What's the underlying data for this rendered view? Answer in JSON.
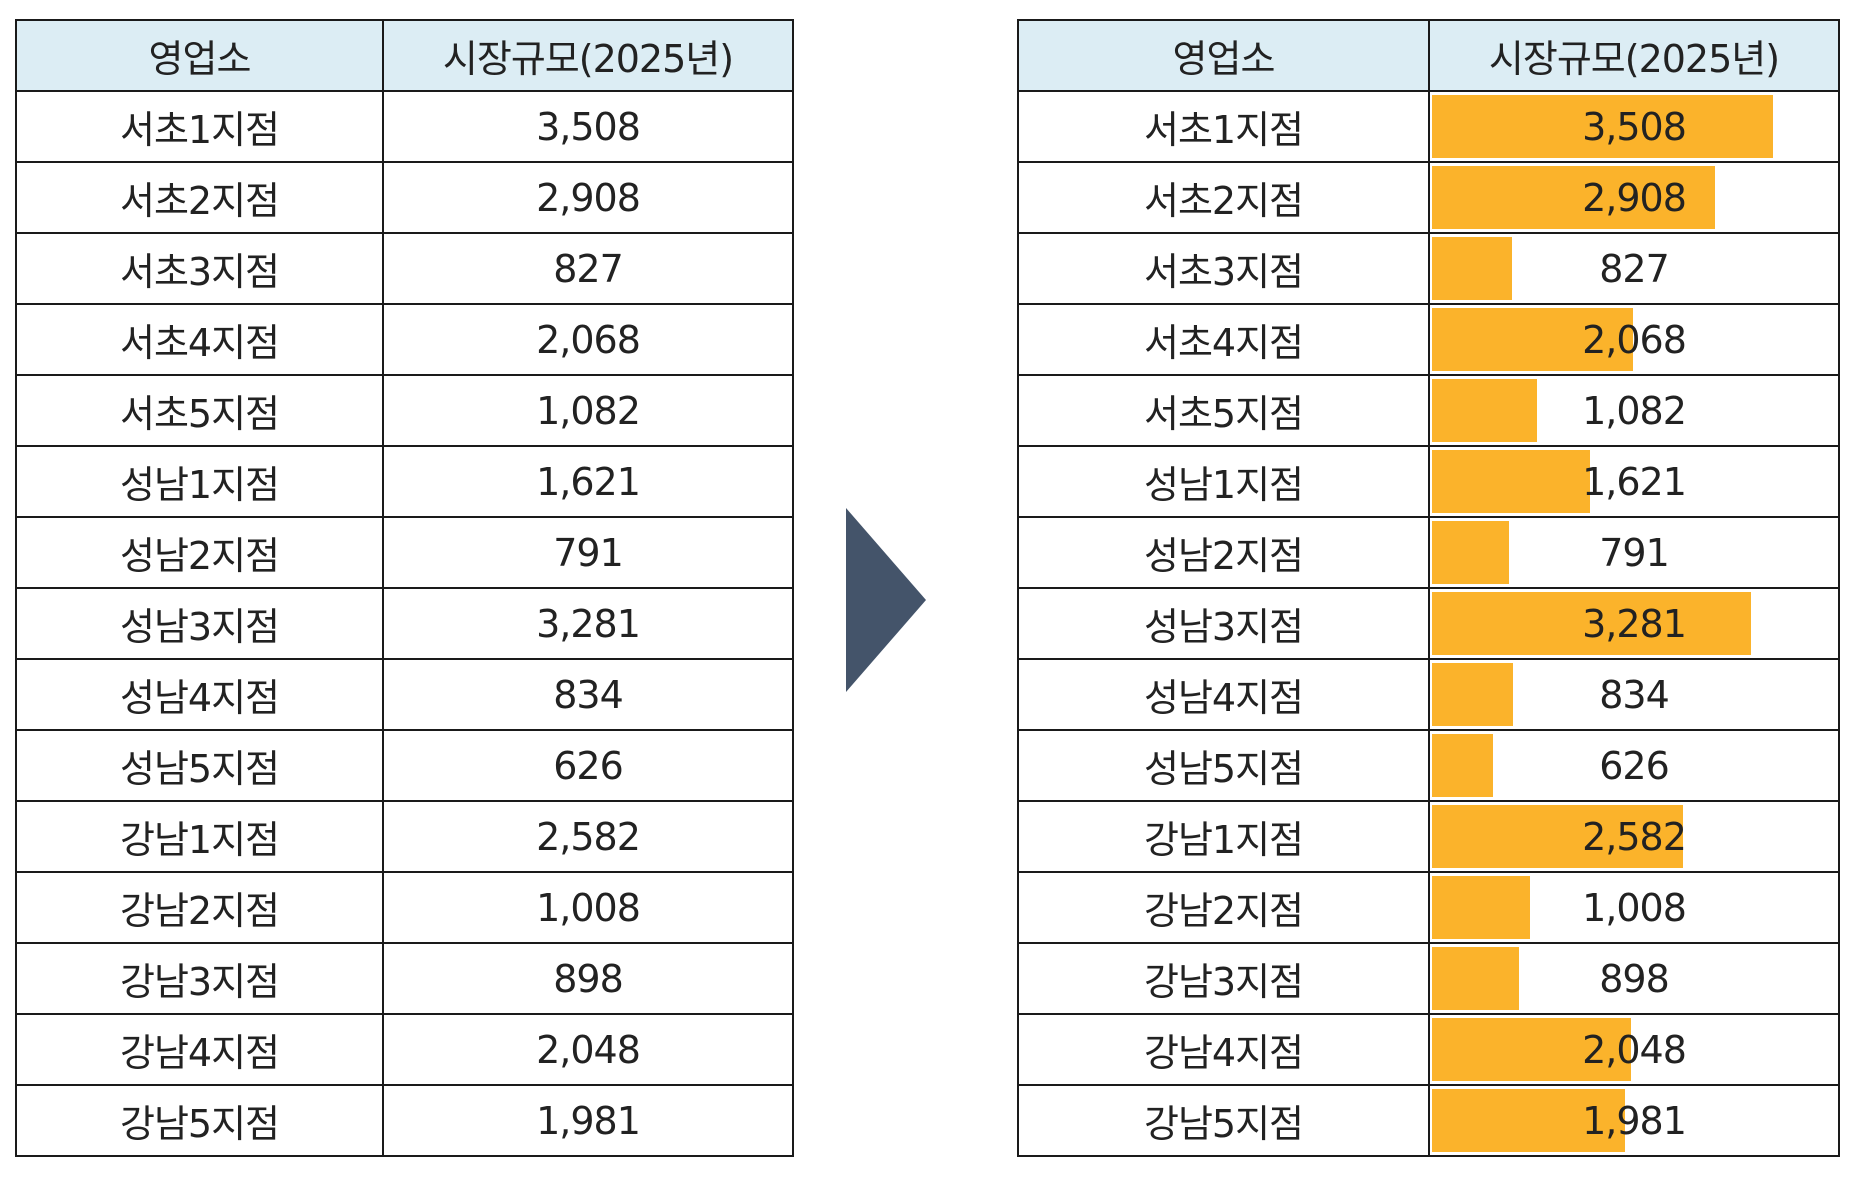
{
  "left_table": {
    "headers": [
      "영업소",
      "시장규모(2025년)"
    ],
    "rows": [
      {
        "office": "서초1지점",
        "market": "3,508"
      },
      {
        "office": "서초2지점",
        "market": "2,908"
      },
      {
        "office": "서초3지점",
        "market": "827"
      },
      {
        "office": "서초4지점",
        "market": "2,068"
      },
      {
        "office": "서초5지점",
        "market": "1,082"
      },
      {
        "office": "성남1지점",
        "market": "1,621"
      },
      {
        "office": "성남2지점",
        "market": "791"
      },
      {
        "office": "성남3지점",
        "market": "3,281"
      },
      {
        "office": "성남4지점",
        "market": "834"
      },
      {
        "office": "성남5지점",
        "market": "626"
      },
      {
        "office": "강남1지점",
        "market": "2,582"
      },
      {
        "office": "강남2지점",
        "market": "1,008"
      },
      {
        "office": "강남3지점",
        "market": "898"
      },
      {
        "office": "강남4지점",
        "market": "2,048"
      },
      {
        "office": "강남5지점",
        "market": "1,981"
      }
    ]
  },
  "right_table": {
    "headers": [
      "영업소",
      "시장규모(2025년)"
    ],
    "bar_max": 3508,
    "rows": [
      {
        "office": "서초1지점",
        "market": "3,508",
        "value": 3508
      },
      {
        "office": "서초2지점",
        "market": "2,908",
        "value": 2908
      },
      {
        "office": "서초3지점",
        "market": "827",
        "value": 827
      },
      {
        "office": "서초4지점",
        "market": "2,068",
        "value": 2068
      },
      {
        "office": "서초5지점",
        "market": "1,082",
        "value": 1082
      },
      {
        "office": "성남1지점",
        "market": "1,621",
        "value": 1621
      },
      {
        "office": "성남2지점",
        "market": "791",
        "value": 791
      },
      {
        "office": "성남3지점",
        "market": "3,281",
        "value": 3281
      },
      {
        "office": "성남4지점",
        "market": "834",
        "value": 834
      },
      {
        "office": "성남5지점",
        "market": "626",
        "value": 626
      },
      {
        "office": "강남1지점",
        "market": "2,582",
        "value": 2582
      },
      {
        "office": "강남2지점",
        "market": "1,008",
        "value": 1008
      },
      {
        "office": "강남3지점",
        "market": "898",
        "value": 898
      },
      {
        "office": "강남4지점",
        "market": "2,048",
        "value": 2048
      },
      {
        "office": "강남5지점",
        "market": "1,981",
        "value": 1981
      }
    ]
  },
  "colors": {
    "header_bg": "#dcedf4",
    "bar": "#fbb32b",
    "arrow": "#44546a",
    "border": "#1a1a1a"
  },
  "arrow_icon": "chevron-right-icon"
}
